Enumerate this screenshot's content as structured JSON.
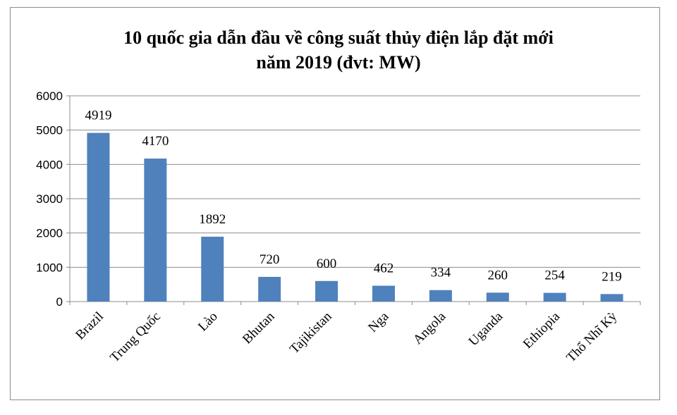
{
  "chart_data": {
    "type": "bar",
    "title_line1": "10 quốc gia dẫn đầu về công suất thủy  điện lắp đặt mới",
    "title_line2": "năm 2019 (đvt:  MW)",
    "categories": [
      "Brazil",
      "Trung Quốc",
      "Lào",
      "Bhutan",
      "Tajikistan",
      "Nga",
      "Angola",
      "Uganda",
      "Ethiopia",
      "Thổ Nhĩ Kỳ"
    ],
    "values": [
      4919,
      4170,
      1892,
      720,
      600,
      462,
      334,
      260,
      254,
      219
    ],
    "ylim": [
      0,
      6000
    ],
    "yticks": [
      0,
      1000,
      2000,
      3000,
      4000,
      5000,
      6000
    ],
    "grid": true,
    "bar_color": "#4f81bd",
    "grid_color": "#8c8c8c"
  }
}
